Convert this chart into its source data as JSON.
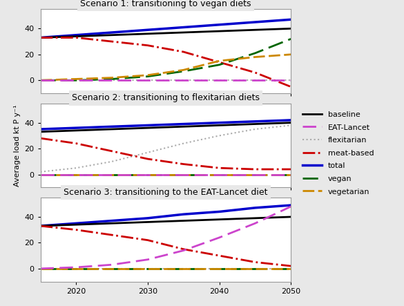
{
  "years": [
    2015,
    2020,
    2025,
    2030,
    2035,
    2040,
    2045,
    2050
  ],
  "scenario1": {
    "title": "Scenario 1: transitioning to vegan diets",
    "baseline": [
      33,
      34,
      35,
      36,
      37,
      38,
      39,
      40
    ],
    "EAT_Lancet": [
      0,
      0,
      0,
      0,
      0,
      0,
      0,
      0
    ],
    "flexitarian": [
      0,
      0,
      0,
      0,
      0,
      0,
      0,
      0
    ],
    "meat_based": [
      33,
      33,
      30,
      27,
      22,
      14,
      6,
      -5
    ],
    "total": [
      33,
      35,
      37,
      39,
      41,
      43,
      45,
      47
    ],
    "vegan": [
      0,
      0,
      1,
      3,
      7,
      12,
      21,
      32
    ],
    "vegetarian": [
      0,
      1,
      2,
      4,
      8,
      15,
      18,
      20
    ]
  },
  "scenario2": {
    "title": "Scenario 2: transitioning to flexitarian diets",
    "baseline": [
      33,
      34,
      35,
      36,
      37,
      38,
      39,
      40
    ],
    "EAT_Lancet": [
      0,
      0,
      0,
      0,
      0,
      0,
      0,
      0
    ],
    "flexitarian": [
      2,
      5,
      10,
      17,
      24,
      30,
      35,
      38
    ],
    "meat_based": [
      28,
      24,
      18,
      12,
      8,
      5,
      4,
      4
    ],
    "total": [
      35,
      36,
      37,
      38,
      39,
      40,
      41,
      42
    ],
    "vegan": [
      0,
      0,
      0,
      0,
      0,
      0,
      0,
      0
    ],
    "vegetarian": [
      0,
      0,
      0,
      0,
      0,
      0,
      0,
      0
    ]
  },
  "scenario3": {
    "title": "Scenario 3: transitioning to the EAT-Lancet diet",
    "baseline": [
      33,
      34,
      35,
      36,
      37,
      38,
      39,
      40
    ],
    "EAT_Lancet": [
      0,
      1,
      3,
      7,
      14,
      24,
      35,
      48
    ],
    "flexitarian": [
      0,
      0,
      0,
      0,
      0,
      0,
      0,
      0
    ],
    "meat_based": [
      33,
      30,
      26,
      22,
      15,
      10,
      5,
      2
    ],
    "total": [
      33,
      35,
      37,
      39,
      42,
      44,
      47,
      49
    ],
    "vegan": [
      0,
      0,
      0,
      0,
      0,
      0,
      0,
      0
    ],
    "vegetarian": [
      0,
      0,
      0,
      0,
      0,
      0,
      0,
      0
    ]
  },
  "colors": {
    "baseline": "#000000",
    "EAT_Lancet": "#CC44CC",
    "flexitarian": "#AAAAAA",
    "meat_based": "#CC0000",
    "total": "#0000CC",
    "vegan": "#006600",
    "vegetarian": "#CC8800"
  },
  "ylim": [
    -10,
    55
  ],
  "yticks": [
    0,
    20,
    40
  ],
  "ylabel": "Average load kt P y⁻¹",
  "background_color": "#E8E8E8",
  "panel_background": "#FFFFFF",
  "title_fontsize": 9,
  "label_fontsize": 8,
  "legend_fontsize": 8
}
